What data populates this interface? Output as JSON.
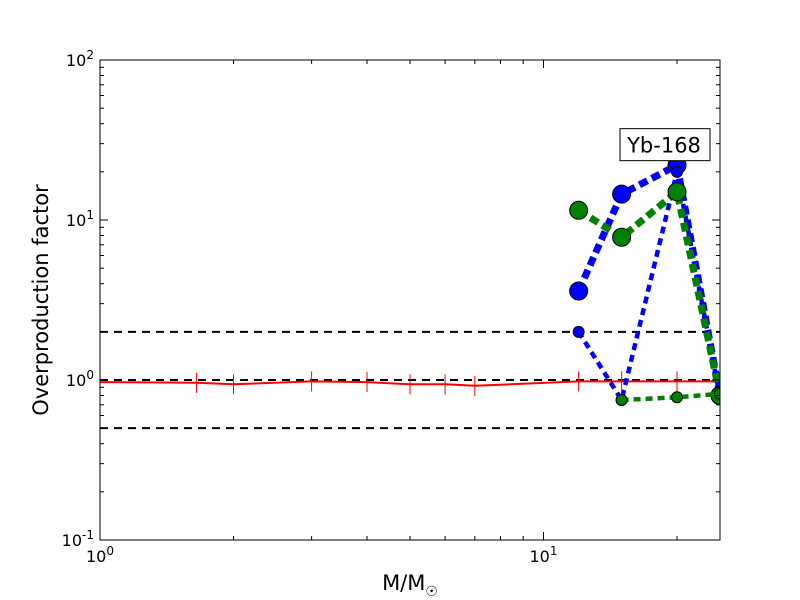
{
  "chart_data": {
    "type": "line",
    "xscale": "log",
    "yscale": "log",
    "xlim": [
      1,
      25
    ],
    "ylim": [
      0.1,
      100
    ],
    "xlabel": "M/M",
    "xlabel_sub": "☉",
    "ylabel": "Overproduction factor",
    "grid": false,
    "annotation": {
      "text": "Yb-168",
      "x": 20,
      "y": 30
    },
    "x_ticks": [
      {
        "value": 1,
        "base": "10",
        "exp": "0"
      },
      {
        "value": 10,
        "base": "10",
        "exp": "1"
      }
    ],
    "y_ticks": [
      {
        "value": 0.1,
        "base": "10",
        "exp": "-1"
      },
      {
        "value": 1,
        "base": "10",
        "exp": "0"
      },
      {
        "value": 10,
        "base": "10",
        "exp": "1"
      },
      {
        "value": 100,
        "base": "10",
        "exp": "2"
      }
    ],
    "reference_lines": [
      0.5,
      1,
      2
    ],
    "series": [
      {
        "color": "#ff0000",
        "style": "solid",
        "x": [
          1,
          1.65,
          2,
          3,
          4,
          5,
          6,
          7,
          12,
          15,
          20,
          25
        ],
        "y": [
          0.97,
          0.96,
          0.94,
          0.98,
          0.97,
          0.94,
          0.94,
          0.92,
          0.98,
          0.98,
          0.98,
          0.98
        ],
        "errorbars": true,
        "markers": false
      },
      {
        "color": "#0000ff",
        "style": "dotted-thick",
        "x": [
          12,
          15,
          20,
          25
        ],
        "y": [
          3.6,
          14.5,
          22,
          0.8
        ],
        "marker_size": "large"
      },
      {
        "color": "#0000ff",
        "style": "dotted",
        "x": [
          12,
          15,
          20,
          25
        ],
        "y": [
          2.0,
          0.75,
          20,
          0.78
        ],
        "marker_size": "small"
      },
      {
        "color": "#008000",
        "style": "dotted-thick",
        "x": [
          12,
          15,
          20,
          25
        ],
        "y": [
          11.5,
          7.8,
          15,
          0.8
        ],
        "marker_size": "large"
      },
      {
        "color": "#008000",
        "style": "dotted",
        "x": [
          15,
          20,
          25
        ],
        "y": [
          0.75,
          0.78,
          0.82
        ],
        "marker_size": "small"
      }
    ]
  }
}
